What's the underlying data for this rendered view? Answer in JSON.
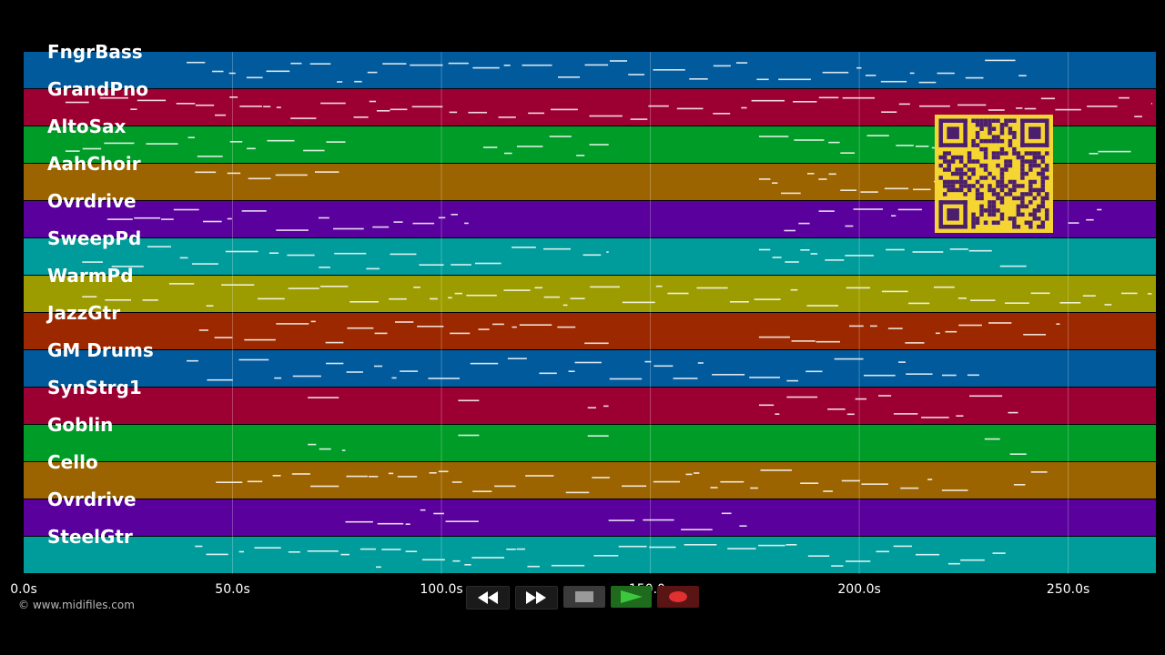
{
  "tracks": [
    {
      "name": "FngrBass",
      "color": "#005a9c"
    },
    {
      "name": "GrandPno",
      "color": "#9c0032"
    },
    {
      "name": "AltoSax",
      "color": "#009c28"
    },
    {
      "name": "AahChoir",
      "color": "#9c6400"
    },
    {
      "name": "Ovrdrive",
      "color": "#5a009c"
    },
    {
      "name": "SweepPd",
      "color": "#009c9c"
    },
    {
      "name": "WarmPd",
      "color": "#9c9c00"
    },
    {
      "name": "JazzGtr",
      "color": "#9c2800"
    },
    {
      "name": "GM Drums",
      "color": "#005a9c"
    },
    {
      "name": "SynStrg1",
      "color": "#9c0032"
    },
    {
      "name": "Goblin",
      "color": "#009c28"
    },
    {
      "name": "Cello",
      "color": "#9c6400"
    },
    {
      "name": "Ovrdrive",
      "color": "#5a009c"
    },
    {
      "name": "SteelGtr",
      "color": "#009c9c"
    }
  ],
  "timeline": {
    "max_seconds": 271,
    "ticks": [
      {
        "t": 0,
        "label": "0.0s"
      },
      {
        "t": 50,
        "label": "50.0s"
      },
      {
        "t": 100,
        "label": "100.0s"
      },
      {
        "t": 150,
        "label": "150.0s"
      },
      {
        "t": 200,
        "label": "200.0s"
      },
      {
        "t": 250,
        "label": "250.0s"
      }
    ]
  },
  "copyright": "© www.midifiles.com",
  "transport": {
    "rewind": "rewind-icon",
    "fast_forward": "fast-forward-icon",
    "stop": "stop-icon",
    "play": "play-icon",
    "record": "record-icon"
  },
  "qr_colors": {
    "fg": "#4b1e6e",
    "bg": "#f5d531"
  }
}
